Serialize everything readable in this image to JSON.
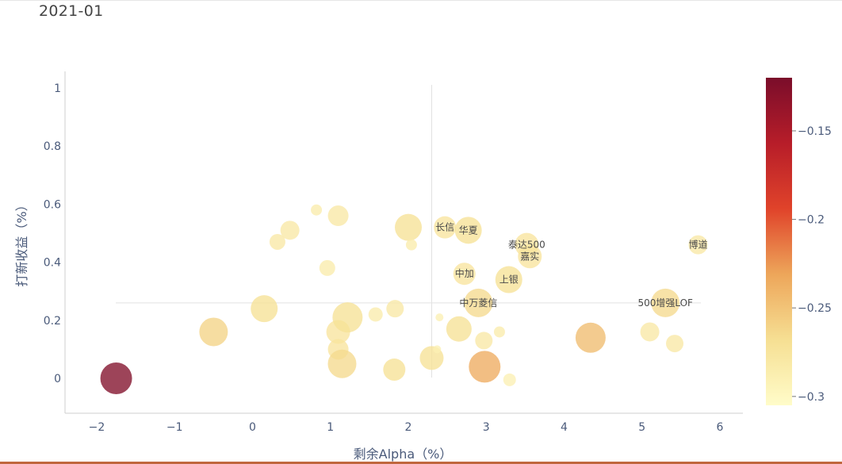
{
  "page": {
    "title": "2021-01"
  },
  "chart_data": {
    "type": "scatter",
    "subtype": "bubble",
    "xlabel": "剩余Alpha（%）",
    "ylabel": "打新收益（%）",
    "xlim": [
      -2.4,
      6.3
    ],
    "ylim": [
      -0.12,
      1.05
    ],
    "xticks": [
      -2,
      -1,
      0,
      1,
      2,
      3,
      4,
      5,
      6
    ],
    "xtick_labels": [
      "−2",
      "−1",
      "0",
      "1",
      "2",
      "3",
      "4",
      "5",
      "6"
    ],
    "yticks": [
      0,
      0.2,
      0.4,
      0.6,
      0.8,
      1
    ],
    "ytick_labels": [
      "0",
      "0.2",
      "0.4",
      "0.6",
      "0.8",
      "1"
    ],
    "grid": false,
    "reference_lines": {
      "x": 2.3,
      "y": 0.26
    },
    "colorbar": {
      "min": -0.305,
      "max": -0.12,
      "ticks": [
        -0.15,
        -0.2,
        -0.25,
        -0.3
      ],
      "tick_labels": [
        "−0.15",
        "−0.2",
        "−0.25",
        "−0.3"
      ],
      "colorscale": [
        "#fffcc9",
        "#f6df93",
        "#eda65a",
        "#e0432a",
        "#b71d29",
        "#7a0d2a"
      ]
    },
    "points": [
      {
        "x": -1.75,
        "y": 0.0,
        "size": 20,
        "color": -0.125,
        "label": ""
      },
      {
        "x": -0.5,
        "y": 0.16,
        "size": 18,
        "color": -0.26,
        "label": ""
      },
      {
        "x": 0.15,
        "y": 0.24,
        "size": 17,
        "color": -0.27,
        "label": ""
      },
      {
        "x": 0.32,
        "y": 0.47,
        "size": 10,
        "color": -0.28,
        "label": ""
      },
      {
        "x": 0.48,
        "y": 0.51,
        "size": 12,
        "color": -0.28,
        "label": ""
      },
      {
        "x": 0.82,
        "y": 0.58,
        "size": 7,
        "color": -0.285,
        "label": ""
      },
      {
        "x": 0.96,
        "y": 0.38,
        "size": 10,
        "color": -0.285,
        "label": ""
      },
      {
        "x": 1.1,
        "y": 0.56,
        "size": 13,
        "color": -0.28,
        "label": ""
      },
      {
        "x": 1.1,
        "y": 0.16,
        "size": 15,
        "color": -0.275,
        "label": ""
      },
      {
        "x": 1.1,
        "y": 0.1,
        "size": 13,
        "color": -0.275,
        "label": ""
      },
      {
        "x": 1.15,
        "y": 0.05,
        "size": 18,
        "color": -0.265,
        "label": ""
      },
      {
        "x": 1.22,
        "y": 0.21,
        "size": 19,
        "color": -0.27,
        "label": ""
      },
      {
        "x": 1.58,
        "y": 0.22,
        "size": 9,
        "color": -0.285,
        "label": ""
      },
      {
        "x": 1.83,
        "y": 0.24,
        "size": 11,
        "color": -0.28,
        "label": ""
      },
      {
        "x": 1.82,
        "y": 0.03,
        "size": 14,
        "color": -0.27,
        "label": ""
      },
      {
        "x": 2.0,
        "y": 0.52,
        "size": 17,
        "color": -0.27,
        "label": ""
      },
      {
        "x": 2.04,
        "y": 0.46,
        "size": 7,
        "color": -0.285,
        "label": ""
      },
      {
        "x": 2.3,
        "y": 0.07,
        "size": 15,
        "color": -0.27,
        "label": ""
      },
      {
        "x": 2.37,
        "y": 0.1,
        "size": 5,
        "color": -0.29,
        "label": ""
      },
      {
        "x": 2.4,
        "y": 0.21,
        "size": 5,
        "color": -0.29,
        "label": ""
      },
      {
        "x": 2.47,
        "y": 0.52,
        "size": 14,
        "color": -0.275,
        "label": "长信"
      },
      {
        "x": 2.65,
        "y": 0.17,
        "size": 16,
        "color": -0.27,
        "label": ""
      },
      {
        "x": 2.72,
        "y": 0.36,
        "size": 14,
        "color": -0.275,
        "label": "中加"
      },
      {
        "x": 2.77,
        "y": 0.51,
        "size": 17,
        "color": -0.27,
        "label": "华夏"
      },
      {
        "x": 2.9,
        "y": 0.26,
        "size": 18,
        "color": -0.265,
        "label": "中万菱信"
      },
      {
        "x": 2.97,
        "y": 0.13,
        "size": 11,
        "color": -0.28,
        "label": ""
      },
      {
        "x": 2.98,
        "y": 0.04,
        "size": 20,
        "color": -0.235,
        "label": ""
      },
      {
        "x": 3.17,
        "y": 0.16,
        "size": 7,
        "color": -0.285,
        "label": ""
      },
      {
        "x": 3.3,
        "y": -0.005,
        "size": 8,
        "color": -0.29,
        "label": ""
      },
      {
        "x": 3.29,
        "y": 0.34,
        "size": 17,
        "color": -0.27,
        "label": "上银"
      },
      {
        "x": 3.52,
        "y": 0.46,
        "size": 15,
        "color": -0.275,
        "label": "泰达500"
      },
      {
        "x": 3.56,
        "y": 0.42,
        "size": 15,
        "color": -0.275,
        "label": "嘉实"
      },
      {
        "x": 4.34,
        "y": 0.14,
        "size": 19,
        "color": -0.245,
        "label": ""
      },
      {
        "x": 5.1,
        "y": 0.16,
        "size": 12,
        "color": -0.28,
        "label": ""
      },
      {
        "x": 5.3,
        "y": 0.26,
        "size": 18,
        "color": -0.265,
        "label": "500增强LOF"
      },
      {
        "x": 5.42,
        "y": 0.12,
        "size": 11,
        "color": -0.28,
        "label": ""
      },
      {
        "x": 5.72,
        "y": 0.46,
        "size": 12,
        "color": -0.28,
        "label": "博道"
      }
    ]
  }
}
